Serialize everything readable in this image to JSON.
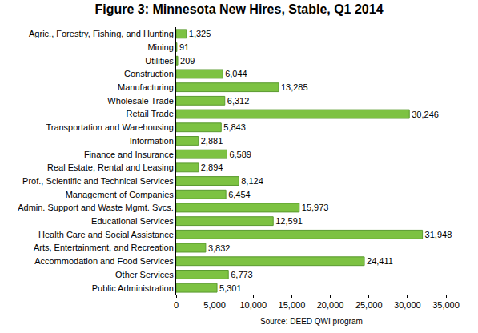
{
  "chart_data": {
    "type": "bar",
    "orientation": "horizontal",
    "title": "Figure 3: Minnesota New Hires, Stable, Q1 2014",
    "annotations": [
      "Source: DEED QWI program"
    ],
    "categories": [
      "Agric., Forestry, Fishing, and Hunting",
      "Mining",
      "Utilities",
      "Construction",
      "Manufacturing",
      "Wholesale Trade",
      "Retail Trade",
      "Transportation and Warehousing",
      "Information",
      "Finance and Insurance",
      "Real Estate, Rental and Leasing",
      "Prof., Scientific and Technical Services",
      "Management of Companies",
      "Admin. Support and Waste Mgmt. Svcs.",
      "Educational Services",
      "Health Care and Social Assistance",
      "Arts, Entertainment, and Recreation",
      "Accommodation and Food Services",
      "Other Services",
      "Public Administration"
    ],
    "values": [
      1325,
      91,
      209,
      6044,
      13285,
      6312,
      30246,
      5843,
      2881,
      6589,
      2894,
      8124,
      6454,
      15973,
      12591,
      31948,
      3832,
      24411,
      6773,
      5301
    ],
    "value_labels": [
      "1,325",
      "91",
      "209",
      "6,044",
      "13,285",
      "6,312",
      "30,246",
      "5,843",
      "2,881",
      "6,589",
      "2,894",
      "8,124",
      "6,454",
      "15,973",
      "12,591",
      "31,948",
      "3,832",
      "24,411",
      "6,773",
      "5,301"
    ],
    "data_labels": true,
    "color": "#7dc242",
    "xlim": [
      0,
      35000
    ],
    "xticks": [
      0,
      {
        "value": 5000,
        "label": "5,000"
      },
      {
        "value": 10000,
        "label": "10,000"
      },
      {
        "value": 15000,
        "label": "15,000"
      },
      {
        "value": 20000,
        "label": "20,000"
      },
      {
        "value": 25000,
        "label": "25,000"
      },
      {
        "value": 30000,
        "label": "30,000"
      },
      {
        "value": 35000,
        "label": "35,000"
      }
    ],
    "grid": false
  }
}
